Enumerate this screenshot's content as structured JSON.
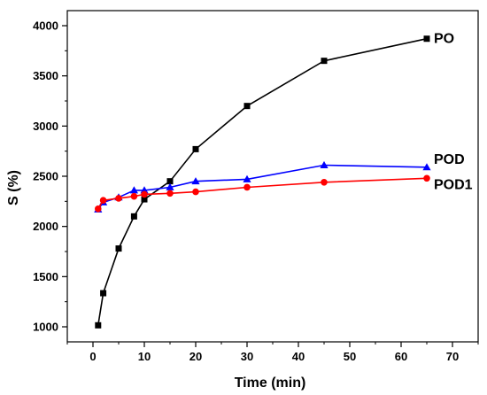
{
  "chart_data": {
    "type": "line",
    "xlabel": "Time (min)",
    "ylabel": "S (%)",
    "xlim": [
      -5,
      75
    ],
    "ylim": [
      850,
      4150
    ],
    "x_ticks": [
      0,
      10,
      20,
      30,
      40,
      50,
      60,
      70
    ],
    "y_ticks": [
      1000,
      1500,
      2000,
      2500,
      3000,
      3500,
      4000
    ],
    "grid": false,
    "legend": "series labels at line ends",
    "series": [
      {
        "name": "PO",
        "color": "#000000",
        "marker": "square",
        "x": [
          1,
          2,
          5,
          8,
          10,
          15,
          20,
          30,
          45,
          65
        ],
        "y": [
          1015,
          1335,
          1780,
          2100,
          2270,
          2450,
          2770,
          3200,
          3650,
          3870
        ]
      },
      {
        "name": "POD",
        "color": "#0000ff",
        "marker": "triangle",
        "x": [
          1,
          2,
          5,
          8,
          10,
          15,
          20,
          30,
          45,
          65
        ],
        "y": [
          2170,
          2240,
          2290,
          2360,
          2360,
          2390,
          2450,
          2470,
          2610,
          2590
        ]
      },
      {
        "name": "POD1",
        "color": "#ff0000",
        "marker": "circle",
        "x": [
          1,
          2,
          5,
          8,
          10,
          15,
          20,
          30,
          45,
          65
        ],
        "y": [
          2175,
          2260,
          2280,
          2300,
          2320,
          2330,
          2345,
          2390,
          2440,
          2480
        ]
      }
    ]
  }
}
